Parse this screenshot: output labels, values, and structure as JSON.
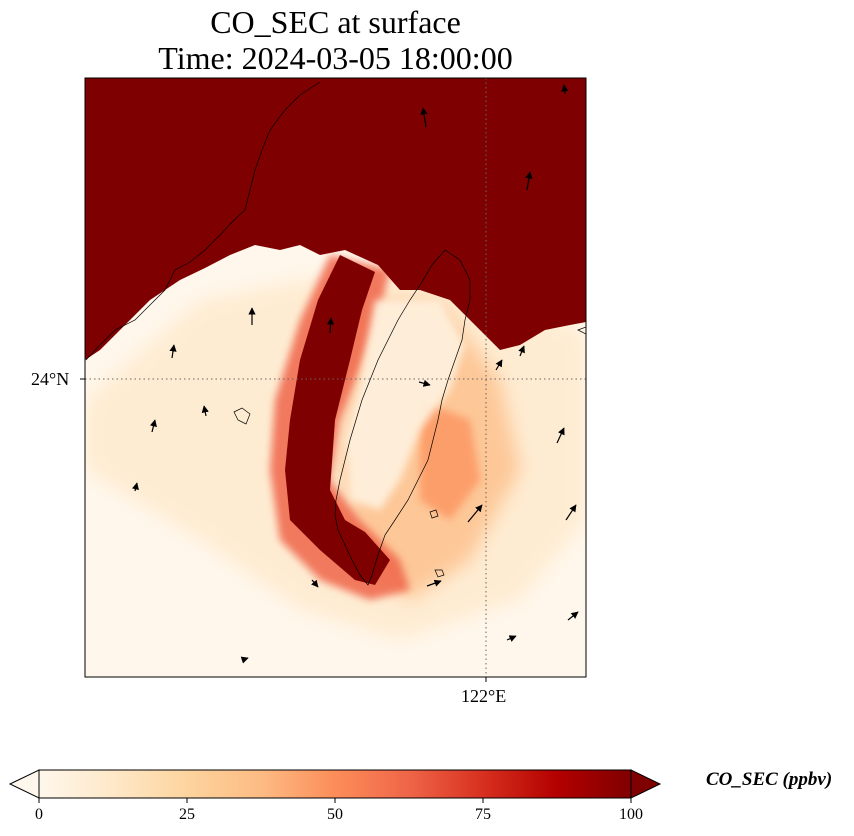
{
  "title_line1": "CO_SEC at surface",
  "title_line2": "Time: 2024-03-05 18:00:00",
  "lat_tick": "24°N",
  "lon_tick": "122°E",
  "colorbar": {
    "label": "CO_SEC (ppbv)",
    "ticks": [
      "0",
      "25",
      "50",
      "75",
      "100"
    ],
    "min": 0,
    "max": 100,
    "extend": "both",
    "cmap": [
      "#fff7ec",
      "#fee8c8",
      "#fdd49e",
      "#fdbb84",
      "#fc8d59",
      "#ef6548",
      "#d7301f",
      "#b30000",
      "#7f0000"
    ]
  },
  "colors": {
    "saturated": "#7f0000",
    "low": "#fff7ec"
  }
}
